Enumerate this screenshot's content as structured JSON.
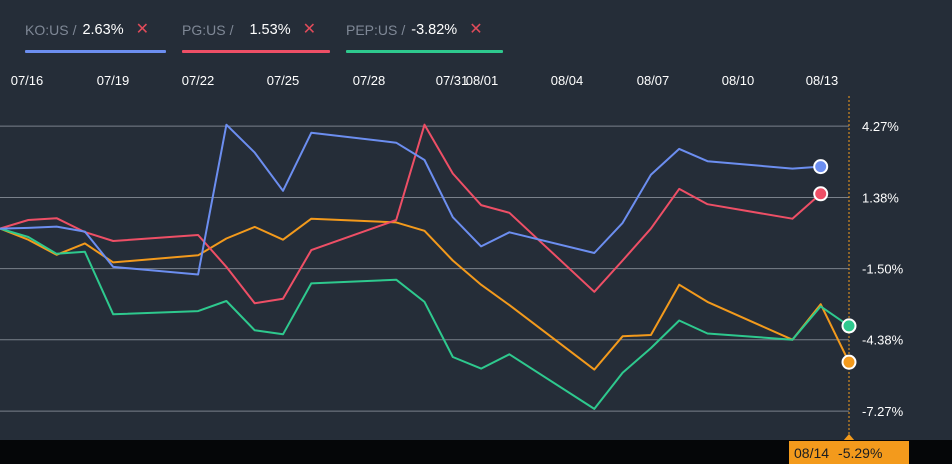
{
  "legend": [
    {
      "symbol": "KO:US",
      "value": "2.63%",
      "color": "#6c8ef0",
      "close_icon": "close-icon"
    },
    {
      "symbol": "PG:US",
      "value": "1.53%",
      "color": "#ee4f66",
      "close_icon": "close-icon"
    },
    {
      "symbol": "PEP:US",
      "value": "-3.82%",
      "color": "#2ec98e",
      "close_icon": "close-icon"
    }
  ],
  "crosshair": {
    "date": "08/14",
    "value": "-5.29%",
    "color": "#f39a1c"
  },
  "chart_data": {
    "type": "line",
    "x_tick_labels": [
      "07/16",
      "07/19",
      "07/22",
      "07/25",
      "07/28",
      "07/31",
      "08/01",
      "08/04",
      "08/07",
      "08/10",
      "08/13"
    ],
    "y_tick_labels": [
      "4.27%",
      "1.38%",
      "-1.50%",
      "-4.38%",
      "-7.27%"
    ],
    "y_ticks": [
      4.27,
      1.38,
      -1.5,
      -4.38,
      -7.27
    ],
    "ylim": [
      -8.32,
      5.45
    ],
    "xlim": [
      0,
      30
    ],
    "grid": true,
    "series": [
      {
        "name": "KO:US",
        "color": "#6c8ef0",
        "points": [
          [
            0,
            0.12
          ],
          [
            1,
            0.15
          ],
          [
            2,
            0.2
          ],
          [
            3,
            0.0
          ],
          [
            4,
            -1.43
          ],
          [
            7,
            -1.74
          ],
          [
            8,
            4.33
          ],
          [
            9,
            3.2
          ],
          [
            10,
            1.65
          ],
          [
            11,
            4.0
          ],
          [
            14,
            3.6
          ],
          [
            15,
            2.9
          ],
          [
            16,
            0.58
          ],
          [
            17,
            -0.6
          ],
          [
            18,
            -0.03
          ],
          [
            21,
            -0.87
          ],
          [
            22,
            0.35
          ],
          [
            23,
            2.3
          ],
          [
            24,
            3.35
          ],
          [
            25,
            2.85
          ],
          [
            28,
            2.55
          ],
          [
            29,
            2.63
          ]
        ]
      },
      {
        "name": "PG:US",
        "color": "#ee4f66",
        "points": [
          [
            0,
            0.12
          ],
          [
            1,
            0.47
          ],
          [
            2,
            0.54
          ],
          [
            3,
            -0.02
          ],
          [
            4,
            -0.38
          ],
          [
            7,
            -0.14
          ],
          [
            8,
            -1.43
          ],
          [
            9,
            -2.9
          ],
          [
            10,
            -2.72
          ],
          [
            11,
            -0.75
          ],
          [
            14,
            0.47
          ],
          [
            15,
            4.33
          ],
          [
            16,
            2.35
          ],
          [
            17,
            1.07
          ],
          [
            18,
            0.76
          ],
          [
            21,
            -2.44
          ],
          [
            22,
            -1.17
          ],
          [
            23,
            0.12
          ],
          [
            24,
            1.73
          ],
          [
            25,
            1.11
          ],
          [
            28,
            0.52
          ],
          [
            29,
            1.53
          ]
        ]
      },
      {
        "name": "PEP:US",
        "color": "#2ec98e",
        "points": [
          [
            0,
            0.12
          ],
          [
            1,
            -0.22
          ],
          [
            2,
            -0.9
          ],
          [
            3,
            -0.82
          ],
          [
            4,
            -3.35
          ],
          [
            7,
            -3.22
          ],
          [
            8,
            -2.81
          ],
          [
            9,
            -4.0
          ],
          [
            10,
            -4.16
          ],
          [
            11,
            -2.1
          ],
          [
            14,
            -1.95
          ],
          [
            15,
            -2.85
          ],
          [
            16,
            -5.08
          ],
          [
            17,
            -5.55
          ],
          [
            18,
            -4.97
          ],
          [
            21,
            -7.18
          ],
          [
            22,
            -5.72
          ],
          [
            23,
            -4.72
          ],
          [
            24,
            -3.6
          ],
          [
            25,
            -4.13
          ],
          [
            28,
            -4.38
          ],
          [
            29,
            -3.03
          ],
          [
            30,
            -3.82
          ]
        ]
      },
      {
        "name": "",
        "color": "#f39a1c",
        "points": [
          [
            0,
            0.12
          ],
          [
            1,
            -0.33
          ],
          [
            2,
            -0.94
          ],
          [
            3,
            -0.48
          ],
          [
            4,
            -1.25
          ],
          [
            7,
            -0.96
          ],
          [
            8,
            -0.28
          ],
          [
            9,
            0.19
          ],
          [
            10,
            -0.33
          ],
          [
            11,
            0.52
          ],
          [
            14,
            0.37
          ],
          [
            15,
            0.03
          ],
          [
            16,
            -1.17
          ],
          [
            17,
            -2.15
          ],
          [
            18,
            -2.98
          ],
          [
            21,
            -5.59
          ],
          [
            22,
            -4.24
          ],
          [
            23,
            -4.19
          ],
          [
            24,
            -2.15
          ],
          [
            25,
            -2.85
          ],
          [
            28,
            -4.38
          ],
          [
            29,
            -2.94
          ],
          [
            30,
            -5.29
          ]
        ]
      }
    ]
  }
}
